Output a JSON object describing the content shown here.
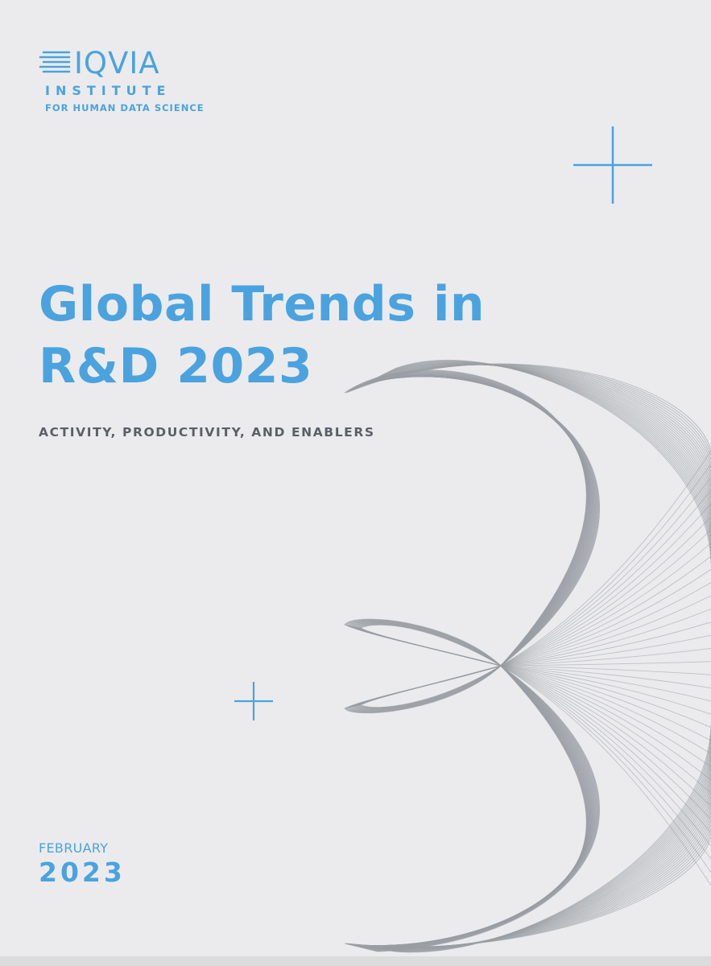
{
  "logo": {
    "wordmark": "IQVIA",
    "line2": "INSTITUTE",
    "line3": "FOR HUMAN DATA SCIENCE",
    "color": "#4aa3df"
  },
  "cover": {
    "title_line1": "Global Trends in",
    "title_line2": "R&D 2023",
    "subtitle": "ACTIVITY, PRODUCTIVITY, AND ENABLERS",
    "date_month": "FEBRUARY",
    "date_year": "2023"
  },
  "colors": {
    "accent": "#4aa3df",
    "background": "#ebebed",
    "artwork": "#9a9ea4",
    "subtitle": "#5c5f66"
  },
  "icons": [
    "plus-cross-icon",
    "plus-cross-icon",
    "logo-lines-icon"
  ]
}
